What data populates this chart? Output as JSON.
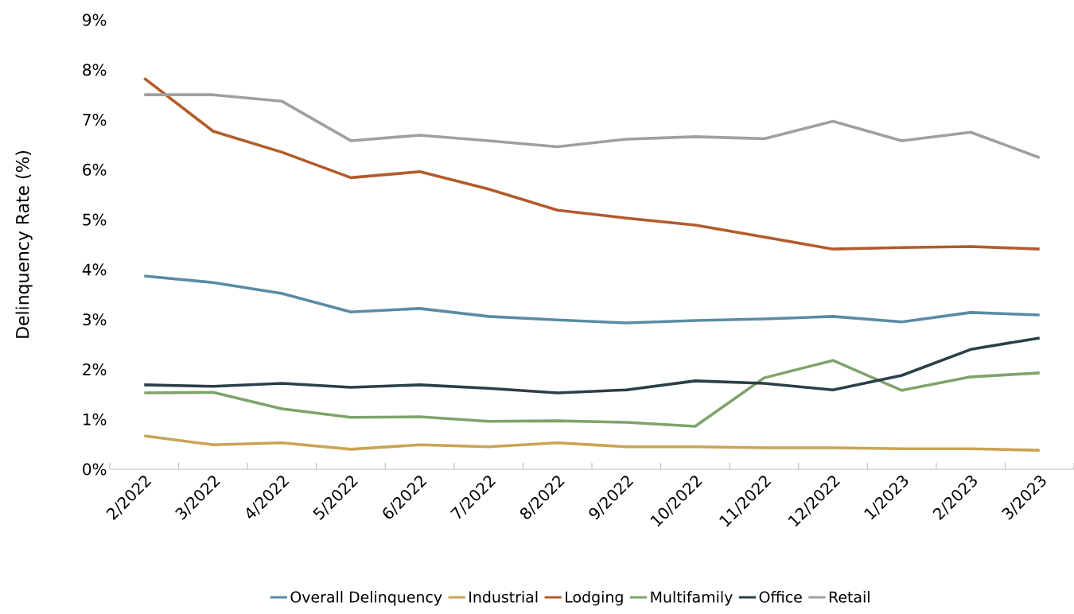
{
  "chart_data": {
    "type": "line",
    "ylabel": "Delinquency Rate (%)",
    "categories": [
      "2/2022",
      "3/2022",
      "4/2022",
      "5/2022",
      "6/2022",
      "7/2022",
      "8/2022",
      "9/2022",
      "10/2022",
      "11/2022",
      "12/2022",
      "1/2023",
      "2/2023",
      "3/2023"
    ],
    "series": [
      {
        "name": "Overall Delinquency",
        "color": "#5b8ba5",
        "values": [
          3.87,
          3.74,
          3.52,
          3.15,
          3.22,
          3.06,
          2.99,
          2.93,
          2.98,
          3.01,
          3.06,
          2.95,
          3.14,
          3.09
        ]
      },
      {
        "name": "Industrial",
        "color": "#c9a456",
        "values": [
          0.67,
          0.49,
          0.53,
          0.4,
          0.49,
          0.45,
          0.53,
          0.45,
          0.45,
          0.43,
          0.43,
          0.41,
          0.41,
          0.38
        ]
      },
      {
        "name": "Lodging",
        "color": "#b35b2c",
        "values": [
          7.83,
          6.77,
          6.35,
          5.84,
          5.96,
          5.61,
          5.19,
          5.03,
          4.89,
          4.65,
          4.41,
          4.44,
          4.46,
          4.41
        ]
      },
      {
        "name": "Multifamily",
        "color": "#7fa36a",
        "values": [
          1.53,
          1.54,
          1.21,
          1.04,
          1.05,
          0.96,
          0.97,
          0.94,
          0.86,
          1.83,
          2.18,
          1.58,
          1.85,
          1.93
        ]
      },
      {
        "name": "Office",
        "color": "#2b3f4a",
        "values": [
          1.69,
          1.66,
          1.72,
          1.64,
          1.69,
          1.62,
          1.53,
          1.59,
          1.77,
          1.72,
          1.59,
          1.88,
          2.4,
          2.63
        ]
      },
      {
        "name": "Retail",
        "color": "#a0a0a0",
        "values": [
          7.5,
          7.5,
          7.37,
          6.58,
          6.69,
          6.58,
          6.46,
          6.61,
          6.66,
          6.62,
          6.97,
          6.58,
          6.75,
          6.24
        ]
      }
    ],
    "ylim": [
      0,
      9
    ],
    "yticks": [
      {
        "value": 0,
        "label": "0%"
      },
      {
        "value": 1,
        "label": "1%"
      },
      {
        "value": 2,
        "label": "2%"
      },
      {
        "value": 3,
        "label": "3%"
      },
      {
        "value": 4,
        "label": "4%"
      },
      {
        "value": 5,
        "label": "5%"
      },
      {
        "value": 6,
        "label": "6%"
      },
      {
        "value": 7,
        "label": "7%"
      },
      {
        "value": 8,
        "label": "8%"
      },
      {
        "value": 9,
        "label": "9%"
      }
    ],
    "grid": false,
    "legend": "bottom",
    "marker": "none",
    "line_style": "solid"
  }
}
